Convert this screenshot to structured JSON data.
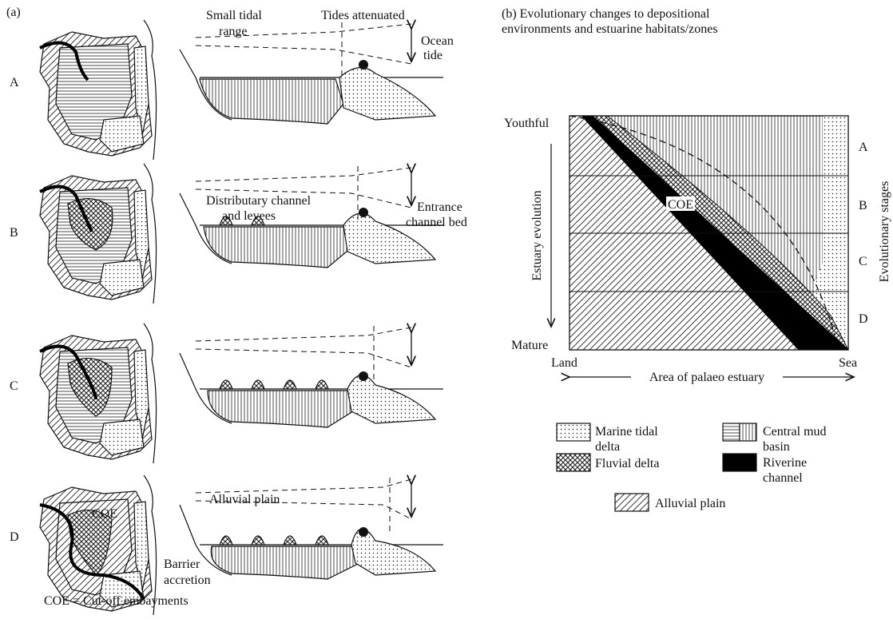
{
  "panel_a": {
    "label": "(a)",
    "rows": [
      "A",
      "B",
      "C",
      "D"
    ],
    "small_tidal_range": [
      "Small tidal",
      "range"
    ],
    "tides_attenuated": "Tides attenuated",
    "ocean_tide": [
      "Ocean",
      "tide"
    ],
    "distributary": [
      "Distributary channel",
      "and levees"
    ],
    "entrance": [
      "Entrance",
      "channel bed"
    ],
    "alluvial_plain": "Alluvial plain",
    "coe": "COE",
    "barrier": [
      "Barrier",
      "accretion"
    ],
    "footnote": "COE = Cut-off embayments"
  },
  "panel_b": {
    "title": [
      "(b) Evolutionary changes to depositional",
      "environments and estuarine habitats/zones"
    ],
    "youthful": "Youthful",
    "mature": "Mature",
    "land": "Land",
    "sea": "Sea",
    "x_axis": "Area of palaeo estuary",
    "y_axis": "Estuary evolution",
    "y2_axis": "Evolutionary stages",
    "coe": "COE",
    "stages": [
      "A",
      "B",
      "C",
      "D"
    ],
    "legend": {
      "marine": [
        "Marine tidal",
        "delta"
      ],
      "mud": [
        "Central mud",
        "basin"
      ],
      "fluvial": [
        "Fluvial delta"
      ],
      "riverine": [
        "Riverine",
        "channel"
      ],
      "alluvial": [
        "Alluvial plain"
      ]
    }
  }
}
